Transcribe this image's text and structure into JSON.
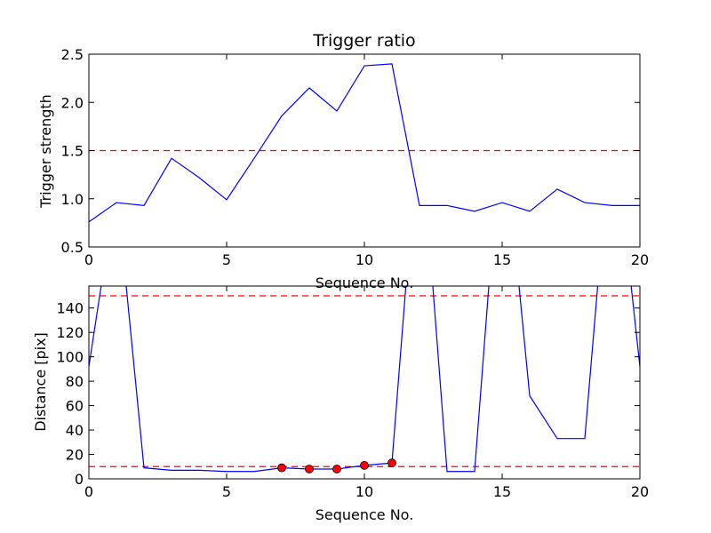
{
  "chart_data": [
    {
      "type": "line",
      "title": "Trigger ratio",
      "xlabel": "Sequence No.",
      "ylabel": "Trigger strength",
      "xlim": [
        0,
        20
      ],
      "ylim": [
        0.5,
        2.5
      ],
      "xticks": [
        "0",
        "5",
        "10",
        "15",
        "20"
      ],
      "yticks": [
        "0.5",
        "1.0",
        "1.5",
        "2.0",
        "2.5"
      ],
      "grid": false,
      "line_color": "#0000ff",
      "threshold_color": "#ff0000",
      "series": [
        {
          "x": [
            0,
            1,
            2,
            3,
            4,
            5,
            6,
            7,
            8,
            9,
            10,
            11,
            12,
            13,
            14,
            15,
            16,
            17,
            18,
            19,
            20
          ],
          "values": [
            0.76,
            0.96,
            0.93,
            1.42,
            1.22,
            0.99,
            1.42,
            1.86,
            2.15,
            1.91,
            2.38,
            2.4,
            0.93,
            0.93,
            0.87,
            0.96,
            0.87,
            1.1,
            0.96,
            0.93,
            0.93
          ]
        }
      ],
      "threshold": 1.5
    },
    {
      "type": "line",
      "title": "",
      "xlabel": "Sequence No.",
      "ylabel": "Distance [pix]",
      "xlim": [
        0,
        20
      ],
      "ylim": [
        0,
        158
      ],
      "xticks": [
        "0",
        "5",
        "10",
        "15",
        "20"
      ],
      "yticks": [
        "0",
        "20",
        "40",
        "60",
        "80",
        "100",
        "120",
        "140"
      ],
      "grid": false,
      "line_color": "#0000ff",
      "threshold_color": "#ff0000",
      "marker_color": "#ff0000",
      "series": [
        {
          "x": [
            0,
            1,
            2,
            3,
            4,
            5,
            6,
            7,
            8,
            9,
            10,
            11,
            12,
            13,
            14,
            15,
            16,
            17,
            18,
            19,
            20
          ],
          "values": [
            92,
            240,
            9,
            7,
            7,
            6,
            6,
            9,
            8,
            8,
            11,
            13,
            300,
            6,
            6,
            300,
            68,
            33,
            33,
            300,
            92
          ]
        }
      ],
      "markers": {
        "x": [
          7,
          8,
          9,
          10,
          11
        ],
        "values": [
          9,
          8,
          8,
          11,
          13
        ]
      },
      "thresholds": [
        150,
        10
      ]
    }
  ]
}
